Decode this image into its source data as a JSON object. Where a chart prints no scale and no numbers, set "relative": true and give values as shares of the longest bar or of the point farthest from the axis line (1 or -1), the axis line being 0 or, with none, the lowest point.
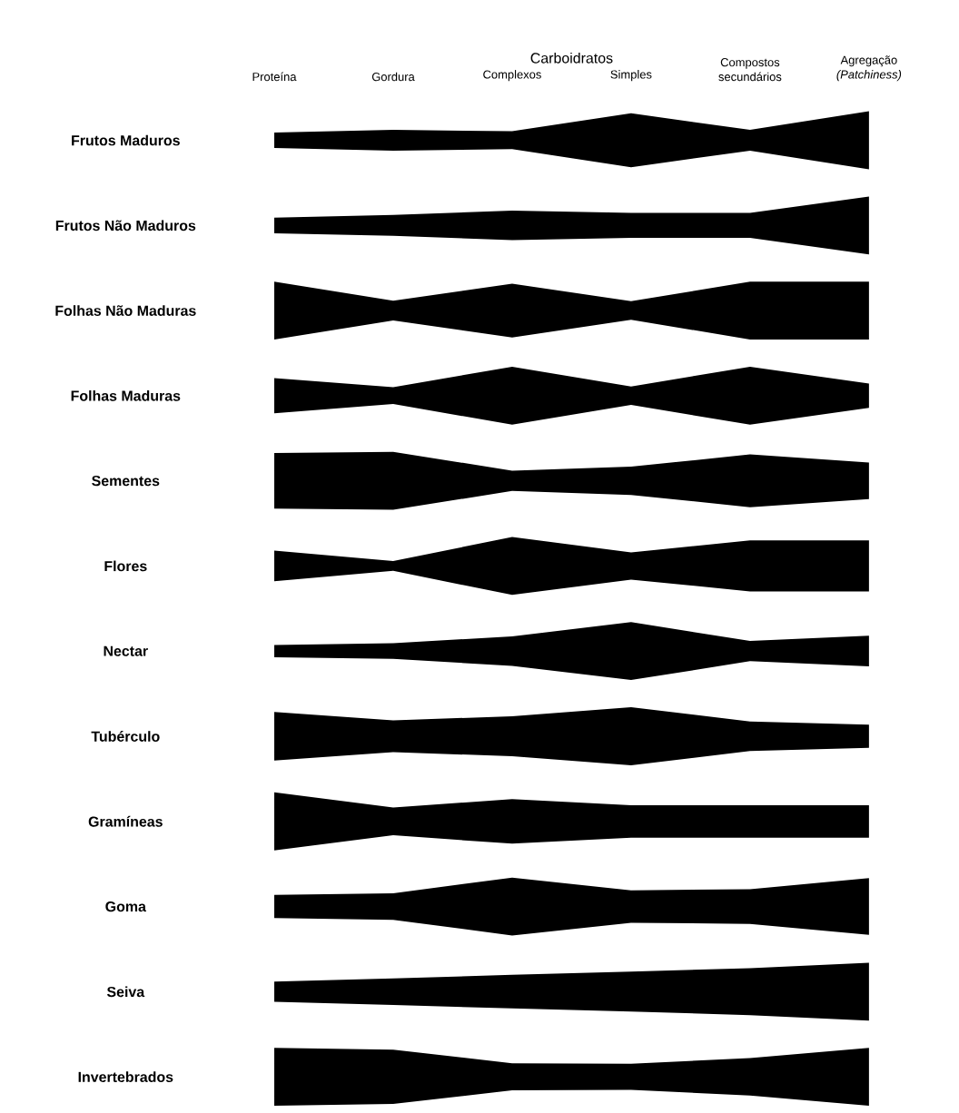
{
  "chart_data": [
    {
      "type": "area",
      "relative": true,
      "ylabel": "Frutos Maduros",
      "categories": [
        "Proteína",
        "Gordura",
        "Complexos",
        "Simples",
        "Compostos secundários",
        "Agregação *(Patchiness)*"
      ],
      "values": [
        0.27,
        0.36,
        0.31,
        0.93,
        0.36,
        1
      ],
      "color": "#000000",
      "annotations": [
        "Carboidratos"
      ]
    },
    {
      "type": "area",
      "relative": true,
      "ylabel": "Frutos Não Maduros",
      "values": [
        0.27,
        0.36,
        0.51,
        0.43,
        0.43,
        1
      ],
      "color": "#000000"
    },
    {
      "type": "area",
      "relative": true,
      "ylabel": "Folhas Não Maduras",
      "values": [
        1,
        0.34,
        0.93,
        0.32,
        1,
        1
      ],
      "color": "#000000"
    },
    {
      "type": "area",
      "relative": true,
      "ylabel": "Folhas Maduras",
      "values": [
        0.61,
        0.29,
        1,
        0.32,
        1,
        0.42
      ],
      "color": "#000000"
    },
    {
      "type": "area",
      "relative": true,
      "ylabel": "Sementes",
      "values": [
        0.96,
        1,
        0.35,
        0.49,
        0.91,
        0.63
      ],
      "color": "#000000"
    },
    {
      "type": "area",
      "relative": true,
      "ylabel": "Flores",
      "values": [
        0.53,
        0.17,
        1,
        0.47,
        0.88,
        0.88
      ],
      "color": "#000000"
    },
    {
      "type": "area",
      "relative": true,
      "ylabel": "Nectar",
      "values": [
        0.21,
        0.27,
        0.51,
        1,
        0.35,
        0.53
      ],
      "color": "#000000"
    },
    {
      "type": "area",
      "relative": true,
      "ylabel": "Tubérculo",
      "values": [
        0.84,
        0.55,
        0.69,
        1,
        0.51,
        0.4
      ],
      "color": "#000000"
    },
    {
      "type": "area",
      "relative": true,
      "ylabel": "Gramíneas",
      "values": [
        1,
        0.48,
        0.77,
        0.56,
        0.56,
        0.56
      ],
      "color": "#000000"
    },
    {
      "type": "area",
      "relative": true,
      "ylabel": "Goma",
      "values": [
        0.4,
        0.46,
        1,
        0.56,
        0.6,
        0.98
      ],
      "color": "#000000"
    },
    {
      "type": "area",
      "relative": true,
      "ylabel": "Seiva",
      "values": [
        0.35,
        0.46,
        0.58,
        0.69,
        0.81,
        1
      ],
      "color": "#000000"
    },
    {
      "type": "area",
      "relative": true,
      "ylabel": "Invertebrados",
      "values": [
        1,
        0.94,
        0.47,
        0.45,
        0.65,
        1
      ],
      "color": "#000000"
    }
  ]
}
